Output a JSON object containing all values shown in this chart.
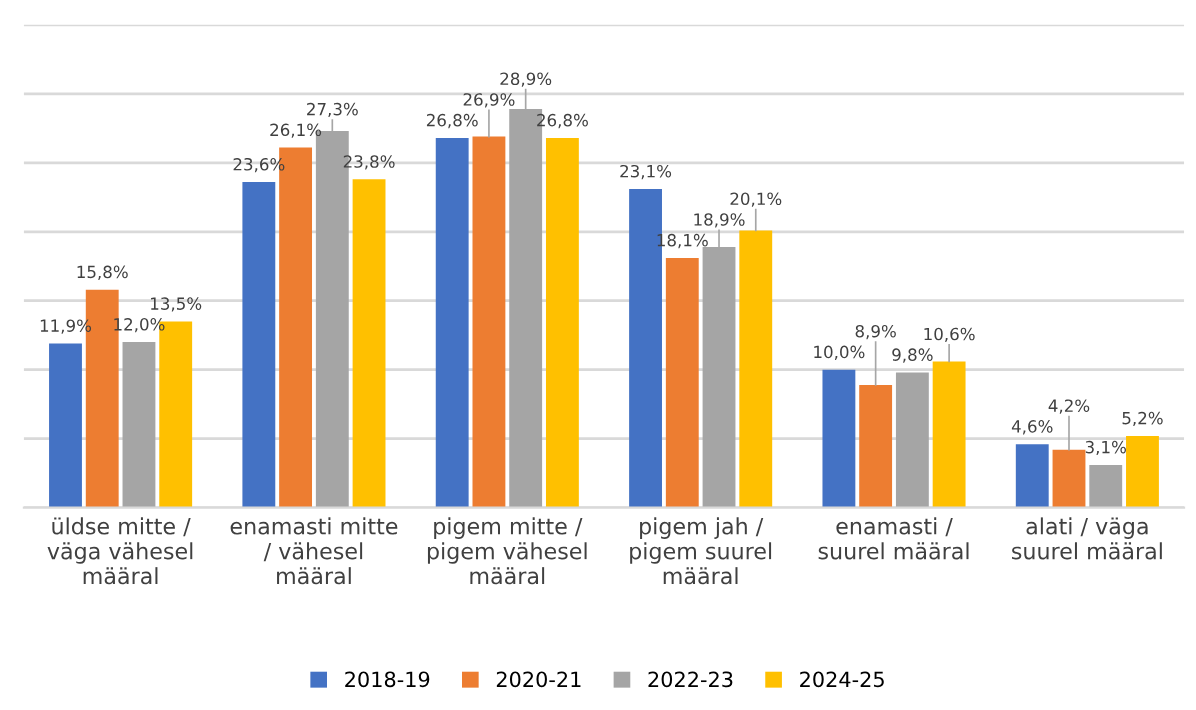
{
  "chart_data": {
    "type": "bar",
    "categories": [
      "üldse mitte /\nväga vähesel\nmääral",
      "enamasti mitte\n/ vähesel\nmääral",
      "pigem mitte /\npigem vähesel\nmääral",
      "pigem jah /\npigem suurel\nmääral",
      "enamasti /\nsuurel määral",
      "alati / väga\nsuurel määral"
    ],
    "series": [
      {
        "name": "2018-19",
        "color": "#4472c4",
        "values": [
          11.9,
          23.6,
          26.8,
          23.1,
          10.0,
          4.6
        ],
        "value_labels": [
          "11,9%",
          "23,6%",
          "26,8%",
          "23,1%",
          "10,0%",
          "4,6%"
        ]
      },
      {
        "name": "2020-21",
        "color": "#ed7d31",
        "values": [
          15.8,
          26.1,
          26.9,
          18.1,
          8.9,
          4.2
        ],
        "value_labels": [
          "15,8%",
          "26,1%",
          "26,9%",
          "18,1%",
          "8,9%",
          "4,2%"
        ]
      },
      {
        "name": "2022-23",
        "color": "#a5a5a5",
        "values": [
          12.0,
          27.3,
          28.9,
          18.9,
          9.8,
          3.1
        ],
        "value_labels": [
          "12,0%",
          "27,3%",
          "28,9%",
          "18,9%",
          "9,8%",
          "3,1%"
        ]
      },
      {
        "name": "2024-25",
        "color": "#ffc000",
        "values": [
          13.5,
          23.8,
          26.8,
          20.1,
          10.6,
          5.2
        ],
        "value_labels": [
          "13,5%",
          "23,8%",
          "26,8%",
          "20,1%",
          "10,6%",
          "5,2%"
        ]
      }
    ],
    "ylim": [
      0,
      35
    ],
    "yticks": [
      {
        "value": 0,
        "label": null
      },
      {
        "value": 5,
        "label": null
      },
      {
        "value": 10,
        "label": null
      },
      {
        "value": 15,
        "label": null
      },
      {
        "value": 20,
        "label": null
      },
      {
        "value": 25,
        "label": null
      },
      {
        "value": 30,
        "label": null
      },
      {
        "value": 35,
        "label": null
      }
    ],
    "tick_labels": "x",
    "grid": "y",
    "legend": "bottom"
  }
}
